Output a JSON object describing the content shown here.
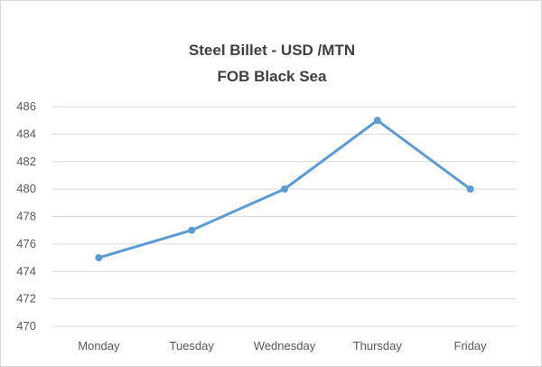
{
  "chart_data": {
    "type": "line",
    "title": [
      "Steel Billet - USD /MTN",
      "FOB Black Sea"
    ],
    "xlabel": "",
    "ylabel": "",
    "categories": [
      "Monday",
      "Tuesday",
      "Wednesday",
      "Thursday",
      "Friday"
    ],
    "series": [
      {
        "values": [
          475,
          477,
          480,
          485,
          480
        ],
        "color": "#5b9bd5"
      }
    ],
    "ylim": [
      470,
      486
    ],
    "yticks": [
      470,
      472,
      474,
      476,
      478,
      480,
      482,
      484,
      486
    ],
    "grid": true,
    "legend": "none",
    "gridline_color": "#d9d9d9"
  }
}
